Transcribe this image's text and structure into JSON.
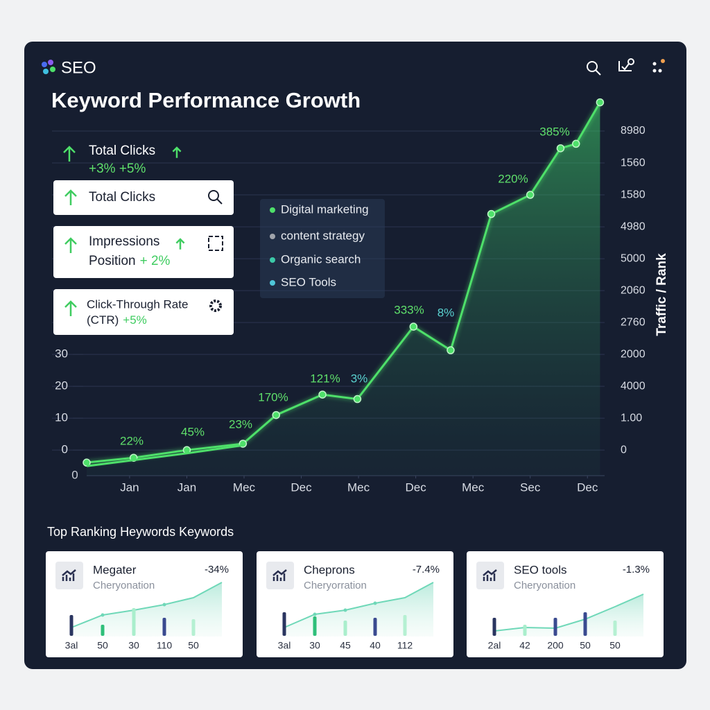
{
  "header": {
    "brand": "SEO"
  },
  "chart_data": {
    "type": "line",
    "title": "Keyword Performance Growth",
    "series": [
      {
        "color": "#4ee06a",
        "x": [
          -0.75,
          0.07,
          1.0,
          1.98,
          2.56,
          3.37,
          3.98,
          4.96,
          5.61,
          6.32,
          7.0,
          7.53,
          7.8,
          8.22
        ],
        "values": [
          -3.9,
          -2.4,
          0,
          2,
          11,
          17.4,
          16,
          38.7,
          31.3,
          74,
          80,
          94.6,
          96,
          109
        ]
      },
      {
        "color": "#4ee06a",
        "x": [
          -0.75,
          1.0,
          1.98
        ],
        "values": [
          -5,
          -1,
          1.5
        ]
      }
    ],
    "xlim": [
      -0.75,
      8.3
    ],
    "xticks": [
      {
        "value": 0,
        "label": "Jan"
      },
      {
        "value": 1,
        "label": "Jan"
      },
      {
        "value": 2,
        "label": "Mec"
      },
      {
        "value": 3,
        "label": "Dec"
      },
      {
        "value": 4,
        "label": "Mec"
      },
      {
        "value": 5,
        "label": "Dec"
      },
      {
        "value": 6,
        "label": "Mec"
      },
      {
        "value": 7,
        "label": "Sec"
      },
      {
        "value": 8,
        "label": "Dec"
      }
    ],
    "ylim": [
      -8,
      110
    ],
    "yticks": [
      0,
      10,
      20,
      30
    ],
    "y2label": "Traffic / Rank",
    "y2_labels": [
      "8980",
      "1560",
      "1580",
      "4980",
      "5000",
      "2060",
      "2760",
      "2000",
      "4000",
      "1.00",
      "0"
    ],
    "annotations": [
      {
        "text": "22%",
        "color": "#5fe06b"
      },
      {
        "text": "45%",
        "color": "#5fe06b"
      },
      {
        "text": "23%",
        "color": "#5fe06b"
      },
      {
        "text": "170%",
        "color": "#5fe06b"
      },
      {
        "text": "121%",
        "color": "#5fe06b"
      },
      {
        "text": "3%",
        "color": "#5ad2d0"
      },
      {
        "text": "333%",
        "color": "#5fe06b"
      },
      {
        "text": "8%",
        "color": "#5ad2d0"
      },
      {
        "text": "220%",
        "color": "#5fe06b"
      },
      {
        "text": "385%",
        "color": "#5fe06b"
      },
      {
        "text": "0",
        "color": "#c8cdd6"
      }
    ]
  },
  "overlay_legend": [
    {
      "text": "Digital marketing",
      "color": "#4ee06a"
    },
    {
      "text": "content strategy",
      "color": "#a0a4ab"
    },
    {
      "text": "Organic search",
      "color": "#3cc9a8"
    },
    {
      "text": "SEO Tools",
      "color": "#4fc6d8"
    }
  ],
  "summary": {
    "title": "Total Clicks",
    "change": "+3% +5%"
  },
  "cards": [
    {
      "title": "Total Clicks"
    },
    {
      "title": "Impressions",
      "subtitle": "Position",
      "change": "+ 2%"
    },
    {
      "title": "Click-Through Rate",
      "subtitle": "(CTR)",
      "change": "+5%"
    }
  ],
  "keywords": {
    "title": "Top Ranking Heywords Keywords",
    "cards": [
      {
        "name": "Megater",
        "subtitle": "Cheryonation",
        "change": "-34%",
        "labels": [
          "3al",
          "50",
          "30",
          "110",
          "50"
        ]
      },
      {
        "name": "Cheprons",
        "subtitle": "Cheryorration",
        "change": "-7.4%",
        "labels": [
          "3al",
          "30",
          "45",
          "40",
          "112"
        ]
      },
      {
        "name": "SEO tools",
        "subtitle": "Cheryonation",
        "change": "-1.3%",
        "labels": [
          "2al",
          "42",
          "200",
          "50",
          "50"
        ]
      }
    ]
  }
}
